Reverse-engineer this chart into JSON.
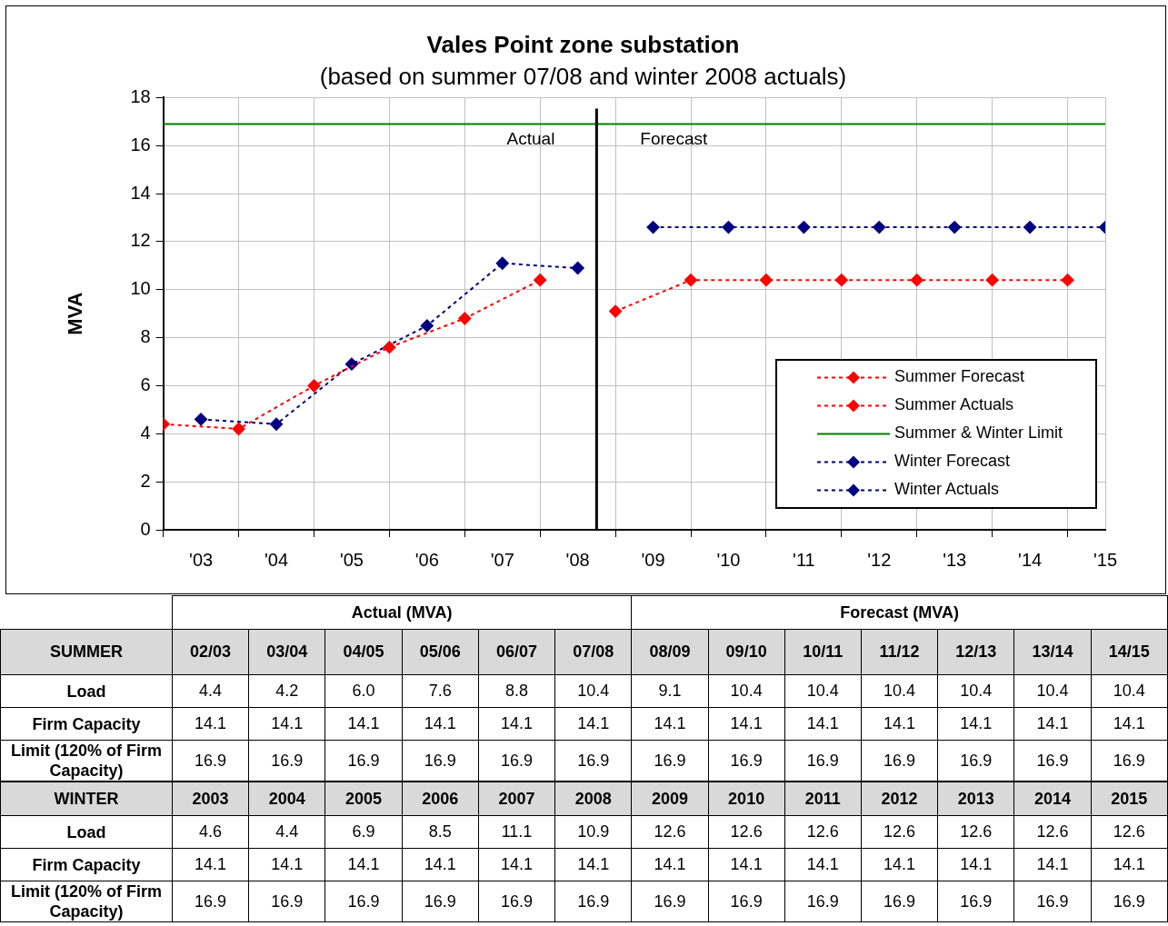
{
  "chart_data": [
    {
      "type": "line",
      "title": "Vales Point zone substation",
      "subtitle": "(based on summer 07/08 and winter 2008 actuals)",
      "ylabel": "MVA",
      "xlim": [
        2002.5,
        2015
      ],
      "ylim": [
        0,
        18
      ],
      "yticks": [
        0,
        2,
        4,
        6,
        8,
        10,
        12,
        14,
        16,
        18
      ],
      "xticks": [
        {
          "value": 2002.5,
          "label": null
        },
        {
          "value": 2003,
          "label": "'03"
        },
        {
          "value": 2003.5,
          "label": null
        },
        {
          "value": 2004,
          "label": "'04"
        },
        {
          "value": 2004.5,
          "label": null
        },
        {
          "value": 2005,
          "label": "'05"
        },
        {
          "value": 2005.5,
          "label": null
        },
        {
          "value": 2006,
          "label": "'06"
        },
        {
          "value": 2006.5,
          "label": null
        },
        {
          "value": 2007,
          "label": "'07"
        },
        {
          "value": 2007.5,
          "label": null
        },
        {
          "value": 2008,
          "label": "'08"
        },
        {
          "value": 2008.5,
          "label": null
        },
        {
          "value": 2009,
          "label": "'09"
        },
        {
          "value": 2009.5,
          "label": null
        },
        {
          "value": 2010,
          "label": "'10"
        },
        {
          "value": 2010.5,
          "label": null
        },
        {
          "value": 2011,
          "label": "'11"
        },
        {
          "value": 2011.5,
          "label": null
        },
        {
          "value": 2012,
          "label": "'12"
        },
        {
          "value": 2012.5,
          "label": null
        },
        {
          "value": 2013,
          "label": "'13"
        },
        {
          "value": 2013.5,
          "label": null
        },
        {
          "value": 2014,
          "label": "'14"
        },
        {
          "value": 2014.5,
          "label": null
        },
        {
          "value": 2015,
          "label": "'15"
        }
      ],
      "grid": true,
      "legend": "bottom right",
      "marker": "diamond",
      "line_style": "dashed",
      "ref_lines": [
        {
          "axis": "x",
          "value": 2008.25,
          "color": "#000000"
        }
      ],
      "annotations": [
        "Actual",
        "Forecast"
      ],
      "series": [
        {
          "name": "Summer Forecast",
          "color": "#ff0000",
          "x": [
            2008.5,
            2009.5,
            2010.5,
            2011.5,
            2012.5,
            2013.5,
            2014.5
          ],
          "values": [
            9.1,
            10.4,
            10.4,
            10.4,
            10.4,
            10.4,
            10.4
          ]
        },
        {
          "name": "Summer Actuals",
          "color": "#ff0000",
          "x": [
            2002.5,
            2003.5,
            2004.5,
            2005.5,
            2006.5,
            2007.5
          ],
          "values": [
            4.4,
            4.2,
            6.0,
            7.6,
            8.8,
            10.4
          ]
        },
        {
          "name": "Summer & Winter Limit",
          "color": "#008000",
          "type": "line",
          "marker": "none",
          "line_style": "solid",
          "x": [
            2002.5,
            2015
          ],
          "values": [
            16.9,
            16.9
          ]
        },
        {
          "name": "Winter Forecast",
          "color": "#000080",
          "x": [
            2009,
            2010,
            2011,
            2012,
            2013,
            2014,
            2015
          ],
          "values": [
            12.6,
            12.6,
            12.6,
            12.6,
            12.6,
            12.6,
            12.6
          ]
        },
        {
          "name": "Winter Actuals",
          "color": "#000080",
          "x": [
            2003,
            2004,
            2005,
            2006,
            2007,
            2008
          ],
          "values": [
            4.6,
            4.4,
            6.9,
            8.5,
            11.1,
            10.9
          ]
        }
      ]
    },
    {
      "type": "heatmap",
      "title": "SUMMER",
      "categories": [
        "02/03",
        "03/04",
        "04/05",
        "05/06",
        "06/07",
        "07/08",
        "08/09",
        "09/10",
        "10/11",
        "11/12",
        "12/13",
        "13/14",
        "14/15"
      ],
      "annotations": [
        "Actual (MVA)",
        "Forecast (MVA)"
      ],
      "y_categories": [
        "Load",
        "Firm Capacity",
        "Limit (120% of Firm Capacity)"
      ],
      "cells": [
        [
          4.4,
          4.2,
          6.0,
          7.6,
          8.8,
          10.4,
          9.1,
          10.4,
          10.4,
          10.4,
          10.4,
          10.4,
          10.4
        ],
        [
          14.1,
          14.1,
          14.1,
          14.1,
          14.1,
          14.1,
          14.1,
          14.1,
          14.1,
          14.1,
          14.1,
          14.1,
          14.1
        ],
        [
          16.9,
          16.9,
          16.9,
          16.9,
          16.9,
          16.9,
          16.9,
          16.9,
          16.9,
          16.9,
          16.9,
          16.9,
          16.9
        ]
      ],
      "cell_labels": [
        [
          "4.4",
          "4.2",
          "6.0",
          "7.6",
          "8.8",
          "10.4",
          "9.1",
          "10.4",
          "10.4",
          "10.4",
          "10.4",
          "10.4",
          "10.4"
        ],
        [
          "14.1",
          "14.1",
          "14.1",
          "14.1",
          "14.1",
          "14.1",
          "14.1",
          "14.1",
          "14.1",
          "14.1",
          "14.1",
          "14.1",
          "14.1"
        ],
        [
          "16.9",
          "16.9",
          "16.9",
          "16.9",
          "16.9",
          "16.9",
          "16.9",
          "16.9",
          "16.9",
          "16.9",
          "16.9",
          "16.9",
          "16.9"
        ]
      ]
    },
    {
      "type": "heatmap",
      "title": "WINTER",
      "categories": [
        "2003",
        "2004",
        "2005",
        "2006",
        "2007",
        "2008",
        "2009",
        "2010",
        "2011",
        "2012",
        "2013",
        "2014",
        "2015"
      ],
      "y_categories": [
        "Load",
        "Firm Capacity",
        "Limit (120% of Firm Capacity)"
      ],
      "cells": [
        [
          4.6,
          4.4,
          6.9,
          8.5,
          11.1,
          10.9,
          12.6,
          12.6,
          12.6,
          12.6,
          12.6,
          12.6,
          12.6
        ],
        [
          14.1,
          14.1,
          14.1,
          14.1,
          14.1,
          14.1,
          14.1,
          14.1,
          14.1,
          14.1,
          14.1,
          14.1,
          14.1
        ],
        [
          16.9,
          16.9,
          16.9,
          16.9,
          16.9,
          16.9,
          16.9,
          16.9,
          16.9,
          16.9,
          16.9,
          16.9,
          16.9
        ]
      ],
      "cell_labels": [
        [
          "4.6",
          "4.4",
          "6.9",
          "8.5",
          "11.1",
          "10.9",
          "12.6",
          "12.6",
          "12.6",
          "12.6",
          "12.6",
          "12.6",
          "12.6"
        ],
        [
          "14.1",
          "14.1",
          "14.1",
          "14.1",
          "14.1",
          "14.1",
          "14.1",
          "14.1",
          "14.1",
          "14.1",
          "14.1",
          "14.1",
          "14.1"
        ],
        [
          "16.9",
          "16.9",
          "16.9",
          "16.9",
          "16.9",
          "16.9",
          "16.9",
          "16.9",
          "16.9",
          "16.9",
          "16.9",
          "16.9",
          "16.9"
        ]
      ]
    }
  ]
}
